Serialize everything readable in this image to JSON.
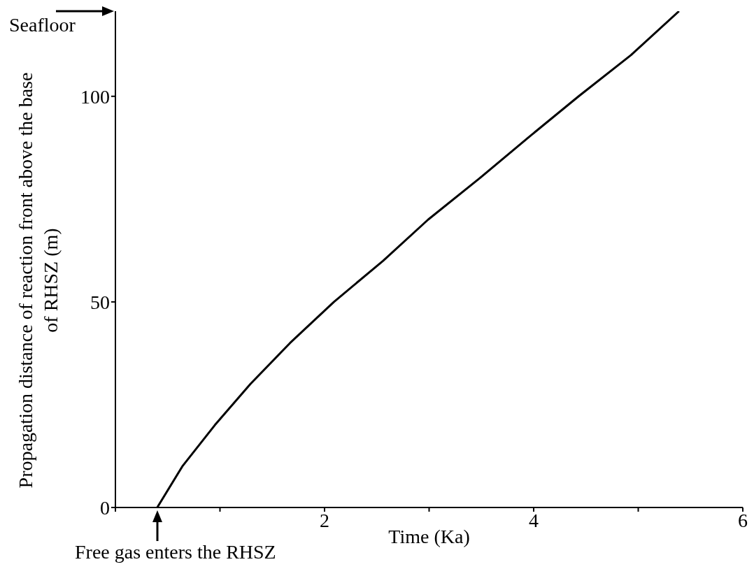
{
  "chart_data": {
    "type": "line",
    "xlabel": "Time (Ka)",
    "ylabel": "Propagation distance of reaction front above the base of RHSZ (m)",
    "x": [
      0.4,
      0.64,
      0.95,
      1.29,
      1.67,
      2.09,
      2.56,
      2.99,
      3.48,
      3.95,
      4.43,
      4.93,
      5.39
    ],
    "series": [
      {
        "color": "#000000",
        "values": [
          0,
          10,
          20,
          30,
          40,
          50,
          60,
          70,
          80,
          90,
          100,
          110,
          120.7
        ]
      }
    ],
    "xlim": [
      0,
      6
    ],
    "xticks": [
      {
        "value": 0,
        "label": null
      },
      {
        "value": 1,
        "label": null
      },
      2,
      {
        "value": 3,
        "label": null
      },
      4,
      {
        "value": 5,
        "label": null
      },
      6
    ],
    "ylim": [
      0,
      120.7
    ],
    "yticks": [
      0,
      50,
      100
    ],
    "grid": false,
    "legend": false,
    "marker": "none",
    "line_style": "solid",
    "annotations": [
      "Seafloor",
      {
        "text": "Free gas enters the RHSZ",
        "x": 0.4,
        "y": 0
      }
    ]
  }
}
